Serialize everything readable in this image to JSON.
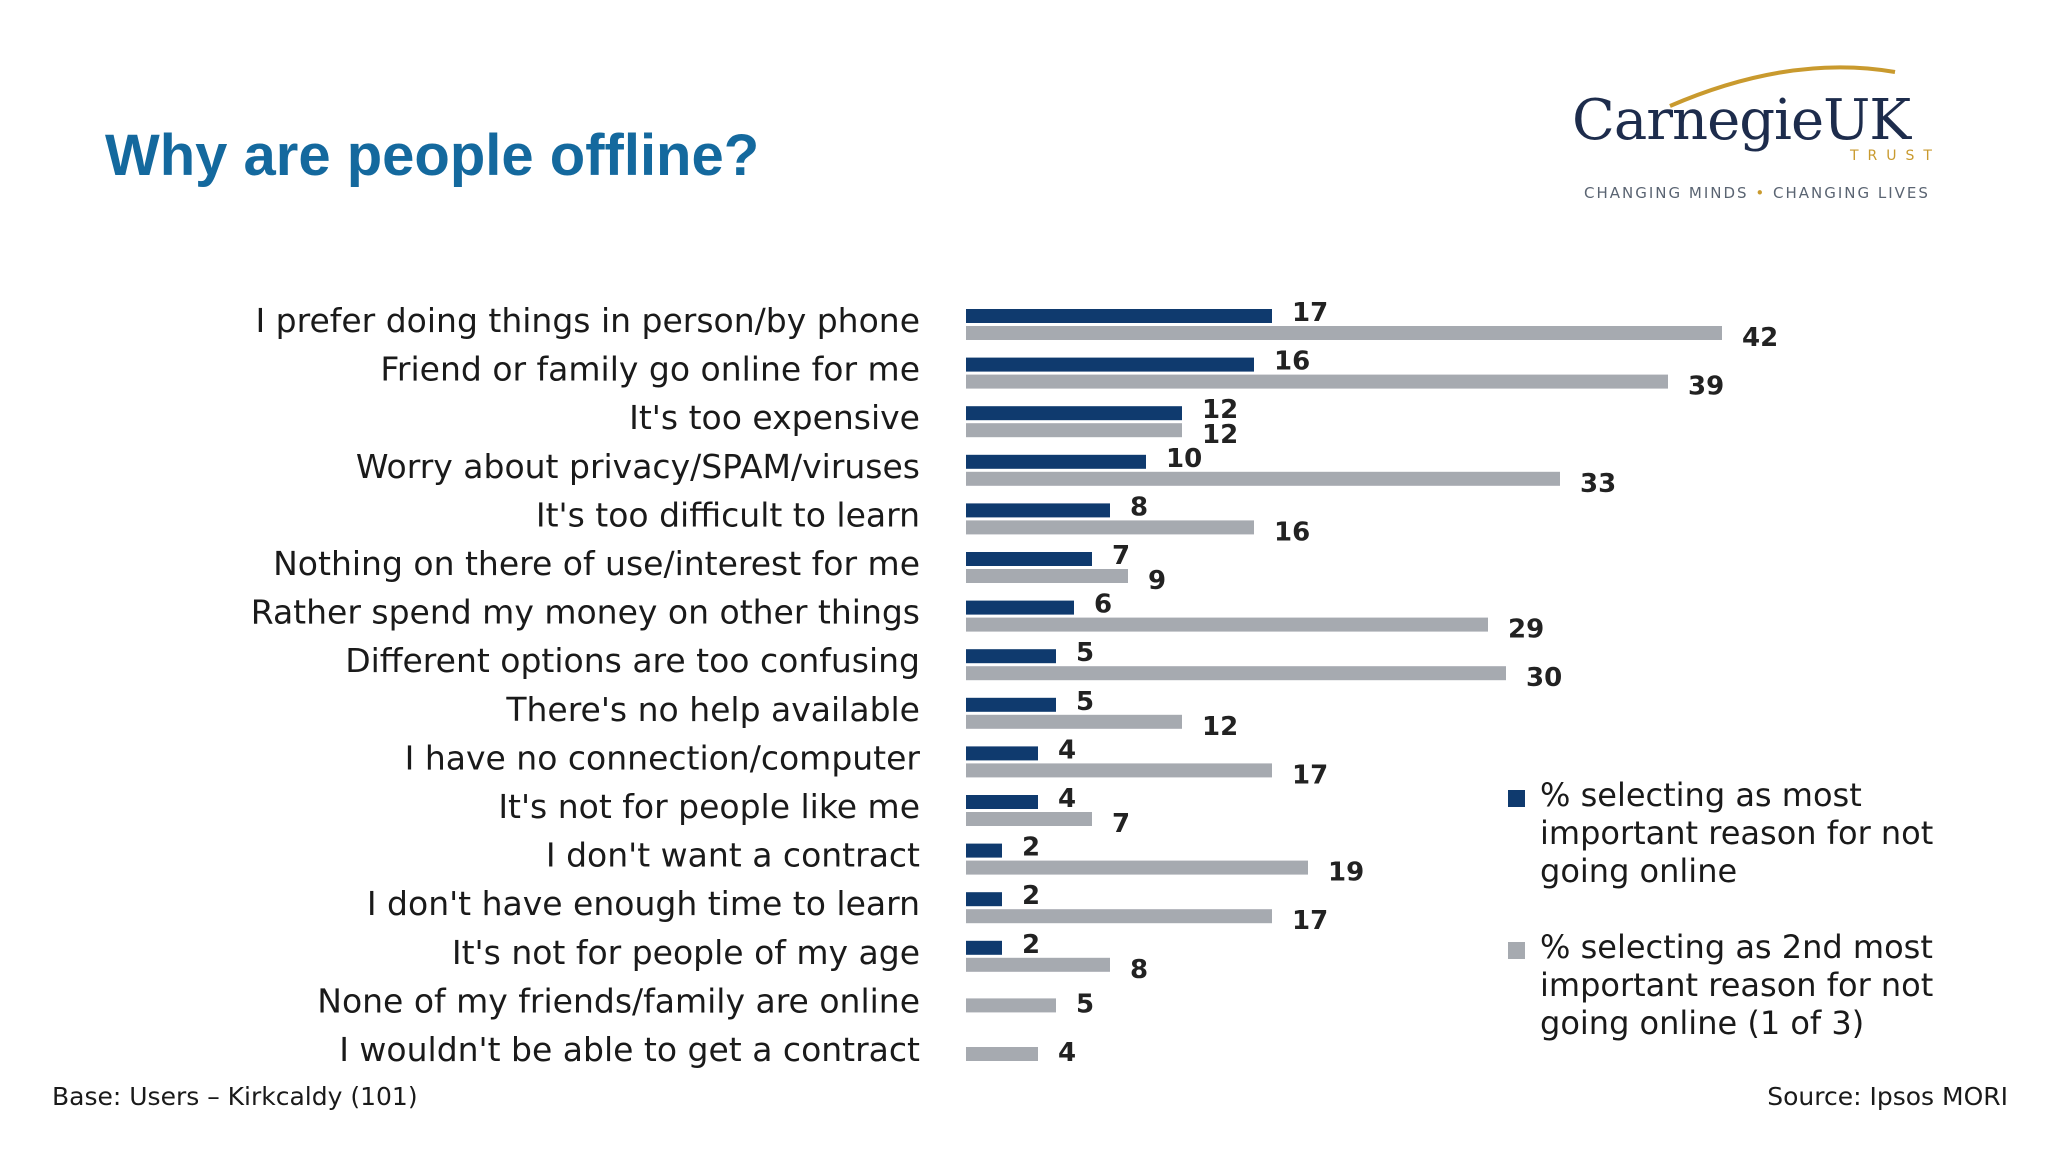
{
  "slide": {
    "title": "Why are people offline?",
    "base_note": "Base: Users – Kirkcaldy (101)",
    "source_note": "Source: Ipsos MORI"
  },
  "logo": {
    "name": "CarnegieUK",
    "sub": "TRUST",
    "tagline_left": "CHANGING MINDS",
    "tagline_right": "CHANGING LIVES",
    "colors": {
      "navy": "#1d2c4c",
      "gold": "#c99a2e"
    }
  },
  "legend": {
    "items": [
      {
        "label": "% selecting as most important reason for not going online",
        "color": "#0f3a6e"
      },
      {
        "label": "% selecting as 2nd most important reason for not going online (1 of 3)",
        "color": "#a6aab0"
      }
    ]
  },
  "chart_data": {
    "type": "bar",
    "orientation": "horizontal",
    "categories": [
      "I prefer doing things in person/by phone",
      "Friend or family go online for me",
      "It's too expensive",
      "Worry about privacy/SPAM/viruses",
      "It's too difficult to learn",
      "Nothing on there of use/interest for me",
      "Rather spend my money on other things",
      "Different options are too confusing",
      "There's no help available",
      "I have no connection/computer",
      "It's not for people like me",
      "I don't want a contract",
      "I don't have enough time to learn",
      "It's not for people of my age",
      "None of my friends/family are online",
      "I wouldn't be able to get a contract"
    ],
    "series": [
      {
        "name": "% selecting as most important reason for not going online",
        "color": "#0f3a6e",
        "values": [
          17,
          16,
          12,
          10,
          8,
          7,
          6,
          5,
          5,
          4,
          4,
          2,
          2,
          2,
          null,
          null
        ]
      },
      {
        "name": "% selecting as 2nd most important reason for not going online (1 of 3)",
        "color": "#a6aab0",
        "values": [
          42,
          39,
          12,
          33,
          16,
          9,
          29,
          30,
          12,
          17,
          7,
          19,
          17,
          8,
          5,
          4
        ]
      }
    ],
    "data_labels": true,
    "xlim": [
      0,
      45
    ],
    "grid": false,
    "legend_position": "right"
  }
}
